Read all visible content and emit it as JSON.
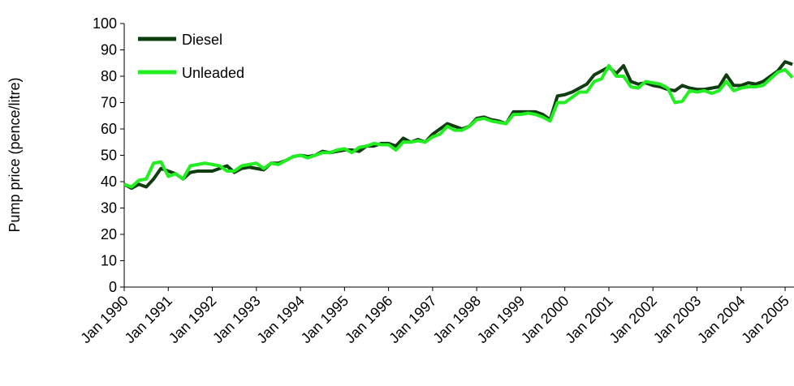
{
  "chart_data": {
    "type": "line",
    "y_label": "Pump price (pence/litre)",
    "categories": [
      "Jan 1990",
      null,
      null,
      null,
      null,
      null,
      "Jan 1991",
      null,
      null,
      null,
      null,
      null,
      "Jan 1992",
      null,
      null,
      null,
      null,
      null,
      "Jan 1993",
      null,
      null,
      null,
      null,
      null,
      "Jan 1994",
      null,
      null,
      null,
      null,
      null,
      "Jan 1995",
      null,
      null,
      null,
      null,
      null,
      "Jan 1996",
      null,
      null,
      null,
      null,
      null,
      "Jan 1997",
      null,
      null,
      null,
      null,
      null,
      "Jan 1998",
      null,
      null,
      null,
      null,
      null,
      "Jan 1999",
      null,
      null,
      null,
      null,
      null,
      "Jan 2000",
      null,
      null,
      null,
      null,
      null,
      "Jan 2001",
      null,
      null,
      null,
      null,
      null,
      "Jan 2002",
      null,
      null,
      null,
      null,
      null,
      "Jan 2003",
      null,
      null,
      null,
      null,
      null,
      "Jan 2004",
      null,
      null,
      null,
      null,
      null,
      "Jan 2005",
      null
    ],
    "series": [
      {
        "name": "Diesel",
        "color": "#0f3d0f",
        "values": [
          39,
          37.5,
          39,
          38,
          41,
          45,
          44,
          43,
          41,
          43.5,
          44,
          44,
          44,
          45,
          46,
          43.5,
          45,
          45.5,
          45,
          44.5,
          47,
          47,
          48,
          49.5,
          50,
          49.5,
          50,
          51.5,
          51,
          51.5,
          52,
          52,
          51.5,
          53.5,
          53.5,
          54.5,
          54.5,
          53.5,
          56.5,
          55,
          56,
          55,
          58,
          60,
          62,
          61,
          60,
          61,
          64,
          64.5,
          63.5,
          63,
          62,
          66.5,
          66.5,
          66.5,
          66.5,
          65.5,
          63.5,
          72.5,
          73,
          74,
          75.5,
          77,
          80.5,
          82,
          83.5,
          81,
          84,
          78,
          77,
          77.5,
          76.5,
          76,
          75,
          74.5,
          76.5,
          75.5,
          75,
          75,
          75.5,
          76,
          80.5,
          76.5,
          76.5,
          77.5,
          77,
          78,
          80,
          82,
          85.5,
          84.5
        ]
      },
      {
        "name": "Unleaded",
        "color": "#22ee22",
        "values": [
          39,
          38,
          40.5,
          41,
          47,
          47.5,
          42,
          43,
          41,
          46,
          46.5,
          47,
          46.5,
          46,
          44,
          44,
          46,
          46.5,
          47,
          45,
          47,
          46.5,
          48,
          49.5,
          50,
          49,
          50,
          51,
          51,
          52,
          52.5,
          51,
          53,
          53.5,
          54.5,
          54,
          54,
          52,
          55,
          55,
          55.5,
          55,
          57,
          58,
          61,
          59.5,
          59.5,
          61,
          63.5,
          64,
          63,
          62.5,
          62,
          65.5,
          65.5,
          66,
          65.5,
          64.5,
          63,
          70,
          70,
          72,
          74,
          74,
          78,
          79,
          84,
          80,
          80,
          76,
          75.5,
          78,
          77.5,
          77,
          75.5,
          70,
          70.5,
          74.5,
          74,
          74.5,
          73.5,
          74.5,
          78,
          74.5,
          75.5,
          76,
          76,
          76.5,
          79,
          81.5,
          82.5,
          79.5
        ]
      }
    ],
    "ylim": [
      0,
      100
    ],
    "yticks": [
      0,
      10,
      20,
      30,
      40,
      50,
      60,
      70,
      80,
      90,
      100
    ],
    "grid": false,
    "legend": "top-left"
  }
}
